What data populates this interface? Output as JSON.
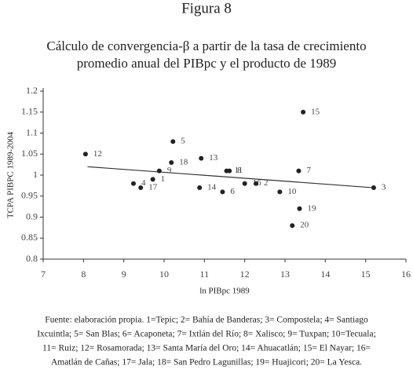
{
  "chart_data": {
    "type": "scatter",
    "title": "Figura 8",
    "subtitle": [
      "Cálculo de convergencia-β a partir de la tasa de crecimiento",
      "promedio anual del PIBpc y el producto de 1989"
    ],
    "y_label": "TCPA PIBPC 1989-2004",
    "x_label": "ln PIBpc 1989",
    "color": "#222222",
    "points": {
      "labels": [
        "12",
        "15",
        "5",
        "13",
        "18",
        "9",
        "11",
        "8",
        "7",
        "4",
        "17",
        "1",
        "14",
        "6",
        "16",
        "2",
        "10",
        "19",
        "20",
        "3"
      ],
      "x": [
        8.05,
        13.45,
        10.22,
        10.92,
        10.18,
        9.88,
        11.55,
        11.62,
        13.34,
        9.24,
        9.42,
        9.72,
        10.88,
        11.45,
        12.0,
        12.28,
        12.87,
        13.36,
        13.18,
        15.2
      ],
      "y": [
        1.05,
        1.15,
        1.08,
        1.04,
        1.03,
        1.01,
        1.01,
        1.01,
        1.01,
        0.98,
        0.97,
        0.99,
        0.97,
        0.96,
        0.98,
        0.98,
        0.96,
        0.92,
        0.88,
        0.97
      ]
    },
    "trend": {
      "x": [
        8.1,
        15.2
      ],
      "y": [
        1.02,
        0.97
      ]
    },
    "xlim": [
      7,
      16
    ],
    "xticks": [
      7,
      8,
      9,
      10,
      11,
      12,
      13,
      14,
      15,
      16
    ],
    "ylim": [
      0.8,
      1.2
    ],
    "yticks": [
      0.8,
      0.85,
      0.9,
      0.95,
      1,
      1.05,
      1.1,
      1.15,
      1.2
    ],
    "source": [
      "Fuente: elaboración propia. 1=Tepic; 2= Bahía de Banderas; 3= Compostela; 4= Santiago",
      "Ixcuintla; 5= San Blas; 6= Acaponeta; 7= Ixtlán del Río; 8= Xalisco; 9= Tuxpan; 10=Tecuala;",
      "11= Ruiz; 12= Rosamorada; 13= Santa María del Oro; 14= Ahuacatlán; 15= El Nayar; 16=",
      "Amatlán de Cañas; 17= Jala; 18= San Pedro Lagunillas; 19= Huajicori; 20= La Yesca."
    ]
  }
}
